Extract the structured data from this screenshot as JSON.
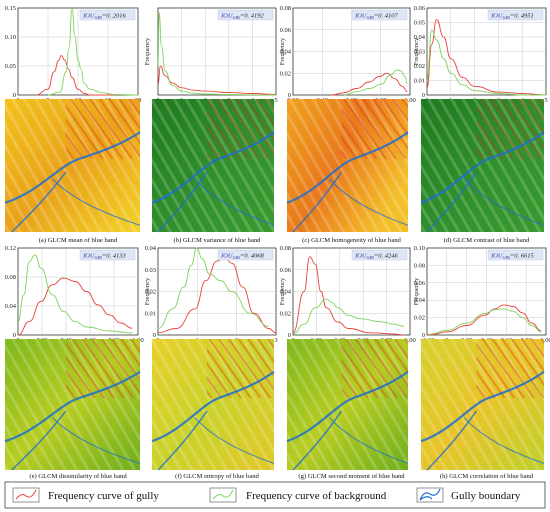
{
  "colors": {
    "gully": "#e8413c",
    "background": "#7fd35a",
    "boundary": "#1f6fd1",
    "axis": "#333333",
    "grid": "#bdbdbd",
    "iou_box": "#dfe6f5",
    "iou_text": "#3a3aa0"
  },
  "legend": {
    "gully_label": "Frequency curve of gully",
    "background_label": "Frequency curve of background",
    "boundary_label": "Gully boundary"
  },
  "chart_data": [
    {
      "type": "line",
      "caption": "(a) GLCM mean of blue band",
      "iou_label": "IOU",
      "iou_sub": "GBS",
      "iou_value": "=0. 2016",
      "ylabel": "",
      "xlim": [
        0,
        20
      ],
      "ylim": [
        0,
        0.15
      ],
      "xticks": [
        "0",
        "5",
        "10",
        "15",
        "20"
      ],
      "yticks": [
        "0",
        "0.05",
        "0.10",
        "0.15"
      ],
      "series": [
        {
          "key": "gully",
          "x": [
            3,
            5,
            6,
            6.8,
            7.2,
            7.8,
            8.4,
            9,
            10,
            11,
            12,
            14,
            16
          ],
          "y": [
            0,
            0.01,
            0.04,
            0.06,
            0.068,
            0.06,
            0.045,
            0.03,
            0.01,
            0.003,
            0,
            0,
            0
          ]
        },
        {
          "key": "background",
          "x": [
            5,
            7,
            8,
            8.5,
            9,
            9.5,
            10,
            10.5,
            11,
            12,
            14,
            16,
            20
          ],
          "y": [
            0,
            0.005,
            0.04,
            0.08,
            0.15,
            0.1,
            0.06,
            0.045,
            0.02,
            0.01,
            0.004,
            0.001,
            0
          ]
        }
      ]
    },
    {
      "type": "line",
      "caption": "(b) GLCM variance of blue band",
      "iou_label": "IOU",
      "iou_sub": "GBS",
      "iou_value": "=0. 4192",
      "ylabel": "Frequency",
      "xlim": [
        0,
        5
      ],
      "ylim": [
        0,
        0.18
      ],
      "xticks": [
        "0",
        "1",
        "2",
        "3",
        "4",
        "5"
      ],
      "yticks": [],
      "series": [
        {
          "key": "gully",
          "x": [
            0,
            0.1,
            0.3,
            0.6,
            1,
            1.5,
            2,
            3,
            4,
            5
          ],
          "y": [
            0.02,
            0.06,
            0.04,
            0.025,
            0.015,
            0.01,
            0.008,
            0.005,
            0.003,
            0.001
          ]
        },
        {
          "key": "background",
          "x": [
            0,
            0.05,
            0.15,
            0.3,
            0.6,
            1,
            1.5,
            2,
            3,
            4,
            5
          ],
          "y": [
            0.06,
            0.17,
            0.1,
            0.05,
            0.02,
            0.008,
            0.004,
            0.002,
            0.001,
            0.0005,
            0
          ]
        }
      ]
    },
    {
      "type": "line",
      "caption": "(c) GLCM homogeneity of blue band",
      "iou_label": "IOU",
      "iou_sub": "GBS",
      "iou_value": "=0. 4107",
      "ylabel": "Frequency",
      "xlim": [
        0.1,
        1.02
      ],
      "ylim": [
        0,
        0.08
      ],
      "xticks": [
        "0.20",
        "0.40",
        "0.60",
        "0.80",
        "1.00"
      ],
      "yticks": [
        "0",
        "0.02",
        "0.04",
        "0.06",
        "0.08"
      ],
      "series": [
        {
          "key": "gully",
          "x": [
            0.4,
            0.5,
            0.6,
            0.7,
            0.78,
            0.84,
            0.9,
            0.96,
            1.0
          ],
          "y": [
            0,
            0.002,
            0.006,
            0.012,
            0.017,
            0.02,
            0.015,
            0.008,
            0.003
          ]
        },
        {
          "key": "background",
          "x": [
            0.5,
            0.6,
            0.7,
            0.8,
            0.86,
            0.92,
            0.95,
            0.98,
            1.0
          ],
          "y": [
            0,
            0.003,
            0.006,
            0.01,
            0.018,
            0.023,
            0.022,
            0.017,
            0.01
          ]
        }
      ]
    },
    {
      "type": "line",
      "caption": "(d) GLCM contrast of blue band",
      "iou_label": "IOU",
      "iou_sub": "GBS",
      "iou_value": "=0. 4951",
      "ylabel": "Frequency",
      "xlim": [
        0,
        5
      ],
      "ylim": [
        0,
        0.06
      ],
      "xticks": [
        "0",
        "1",
        "2",
        "3",
        "4",
        "5"
      ],
      "yticks": [
        "0",
        "0.01",
        "0.02",
        "0.03",
        "0.04",
        "0.05",
        "0.06"
      ],
      "series": [
        {
          "key": "gully",
          "x": [
            0,
            0.2,
            0.4,
            0.7,
            1,
            1.5,
            2,
            3,
            4,
            5
          ],
          "y": [
            0.005,
            0.035,
            0.052,
            0.04,
            0.025,
            0.012,
            0.006,
            0.002,
            0.001,
            0
          ]
        },
        {
          "key": "background",
          "x": [
            0,
            0.2,
            0.4,
            0.7,
            1,
            1.5,
            2,
            3,
            4,
            5
          ],
          "y": [
            0.01,
            0.045,
            0.038,
            0.025,
            0.015,
            0.007,
            0.003,
            0.001,
            0,
            0
          ]
        }
      ]
    },
    {
      "type": "line",
      "caption": "(e) GLCM dissimilarity of blue band",
      "iou_label": "IOU",
      "iou_sub": "GBS",
      "iou_value": "=0. 4133",
      "ylabel": "",
      "xlim": [
        0,
        1.05
      ],
      "ylim": [
        0,
        0.13
      ],
      "xticks": [
        "0",
        "0.20",
        "0.40",
        "0.60",
        "0.80",
        "1.00"
      ],
      "yticks": [
        "0",
        "0.04",
        "0.08",
        "0.12"
      ],
      "series": [
        {
          "key": "gully",
          "x": [
            0,
            0.1,
            0.2,
            0.3,
            0.4,
            0.5,
            0.6,
            0.7,
            0.8,
            0.9,
            1.0
          ],
          "y": [
            0.0,
            0.02,
            0.05,
            0.075,
            0.085,
            0.08,
            0.065,
            0.045,
            0.03,
            0.018,
            0.01
          ]
        },
        {
          "key": "background",
          "x": [
            0,
            0.05,
            0.1,
            0.15,
            0.2,
            0.3,
            0.4,
            0.5,
            0.6,
            0.8,
            1.0
          ],
          "y": [
            0.02,
            0.06,
            0.11,
            0.12,
            0.1,
            0.06,
            0.035,
            0.02,
            0.012,
            0.006,
            0.003
          ]
        }
      ]
    },
    {
      "type": "line",
      "caption": "(f) GLCM entropy of blue band",
      "iou_label": "IOU",
      "iou_sub": "GBS",
      "iou_value": "=0. 4068",
      "ylabel": "Frequency",
      "xlim": [
        0,
        3.2
      ],
      "ylim": [
        0,
        0.04
      ],
      "xticks": [
        "0",
        "1",
        "2",
        "3"
      ],
      "yticks": [
        "0",
        "0.01",
        "0.02",
        "0.03",
        "0.04"
      ],
      "series": [
        {
          "key": "gully",
          "x": [
            0,
            0.5,
            1,
            1.3,
            1.6,
            1.8,
            2,
            2.3,
            2.6,
            3,
            3.2
          ],
          "y": [
            0.001,
            0.003,
            0.012,
            0.025,
            0.034,
            0.036,
            0.033,
            0.022,
            0.01,
            0.003,
            0.001
          ]
        },
        {
          "key": "background",
          "x": [
            0,
            0.4,
            0.7,
            0.9,
            1.05,
            1.2,
            1.4,
            1.7,
            2,
            2.5,
            3
          ],
          "y": [
            0.003,
            0.012,
            0.022,
            0.032,
            0.04,
            0.035,
            0.028,
            0.025,
            0.02,
            0.01,
            0.004
          ]
        }
      ]
    },
    {
      "type": "line",
      "caption": "(g) GLCM second moment of blue band",
      "iou_label": "IOU",
      "iou_sub": "GBS",
      "iou_value": "=0. 4246",
      "ylabel": "Frequency",
      "xlim": [
        0,
        1.05
      ],
      "ylim": [
        0,
        0.08
      ],
      "xticks": [
        "0",
        "0.20",
        "0.40",
        "0.60",
        "0.80",
        "1.00"
      ],
      "yticks": [
        "0",
        "0.02",
        "0.04",
        "0.06",
        "0.08"
      ],
      "series": [
        {
          "key": "gully",
          "x": [
            0,
            0.1,
            0.15,
            0.2,
            0.25,
            0.3,
            0.4,
            0.5,
            0.7,
            0.9,
            1.0
          ],
          "y": [
            0.002,
            0.04,
            0.072,
            0.065,
            0.04,
            0.025,
            0.012,
            0.006,
            0.002,
            0.001,
            0
          ]
        },
        {
          "key": "background",
          "x": [
            0,
            0.1,
            0.2,
            0.3,
            0.35,
            0.4,
            0.5,
            0.6,
            0.8,
            0.9,
            1.0
          ],
          "y": [
            0.001,
            0.01,
            0.025,
            0.033,
            0.03,
            0.025,
            0.018,
            0.015,
            0.012,
            0.01,
            0.008
          ]
        }
      ]
    },
    {
      "type": "line",
      "caption": "(h) GLCM correlation of blue band",
      "iou_label": "IOU",
      "iou_sub": "GBS",
      "iou_value": "=0. 6615",
      "ylabel": "Frequency",
      "xlim": [
        -0.22,
        1.05
      ],
      "ylim": [
        0,
        0.11
      ],
      "xticks": [
        "−0.20",
        "0",
        "0.20",
        "0.40",
        "0.60",
        "0.80",
        "1.00"
      ],
      "yticks": [
        "0",
        "0.02",
        "0.04",
        "0.06",
        "0.08",
        "0.10"
      ],
      "series": [
        {
          "key": "gully",
          "x": [
            -0.2,
            0,
            0.2,
            0.4,
            0.5,
            0.6,
            0.7,
            0.8,
            0.9,
            1.0
          ],
          "y": [
            0,
            0.004,
            0.012,
            0.025,
            0.033,
            0.038,
            0.036,
            0.028,
            0.015,
            0.005
          ]
        },
        {
          "key": "background",
          "x": [
            -0.2,
            0,
            0.2,
            0.4,
            0.5,
            0.6,
            0.7,
            0.8,
            0.9,
            1.0
          ],
          "y": [
            0.001,
            0.006,
            0.015,
            0.027,
            0.032,
            0.033,
            0.03,
            0.022,
            0.012,
            0.004
          ]
        }
      ]
    }
  ]
}
